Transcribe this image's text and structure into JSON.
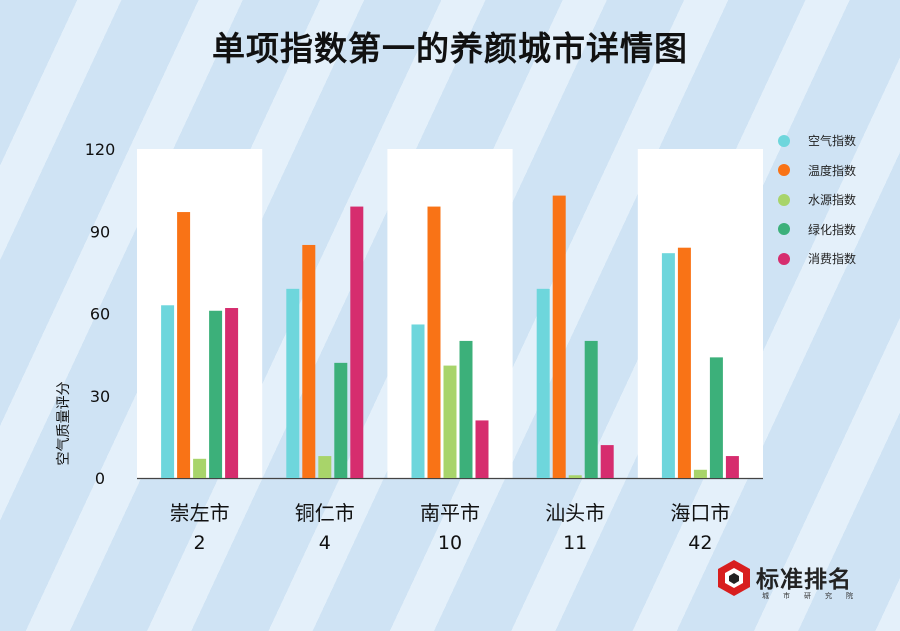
{
  "title": "单项指数第一的养颜城市详情图",
  "chart_data": {
    "type": "bar",
    "title": "单项指数第一的养颜城市详情图",
    "ylabel": "空气质量评分",
    "ylim": [
      0,
      120
    ],
    "yticks": [
      0,
      30,
      60,
      90,
      120
    ],
    "categories": [
      "崇左市",
      "铜仁市",
      "南平市",
      "汕头市",
      "海口市"
    ],
    "ranks": [
      "2",
      "4",
      "10",
      "11",
      "42"
    ],
    "highlighted": [
      true,
      false,
      true,
      false,
      true
    ],
    "legend_position": "right",
    "grid": false,
    "series": [
      {
        "name": "空气指数",
        "color": "#6ed6dc",
        "values": [
          63,
          69,
          56,
          69,
          82
        ]
      },
      {
        "name": "温度指数",
        "color": "#f97316",
        "values": [
          97,
          85,
          99,
          103,
          84
        ]
      },
      {
        "name": "水源指数",
        "color": "#a8d46a",
        "values": [
          7,
          8,
          41,
          1,
          3
        ]
      },
      {
        "name": "绿化指数",
        "color": "#3cb07a",
        "values": [
          61,
          42,
          50,
          50,
          44
        ]
      },
      {
        "name": "消费指数",
        "color": "#d62d6e",
        "values": [
          62,
          99,
          21,
          12,
          8
        ]
      }
    ]
  },
  "logo": {
    "name": "标准排名",
    "sub": "城市研究院"
  }
}
